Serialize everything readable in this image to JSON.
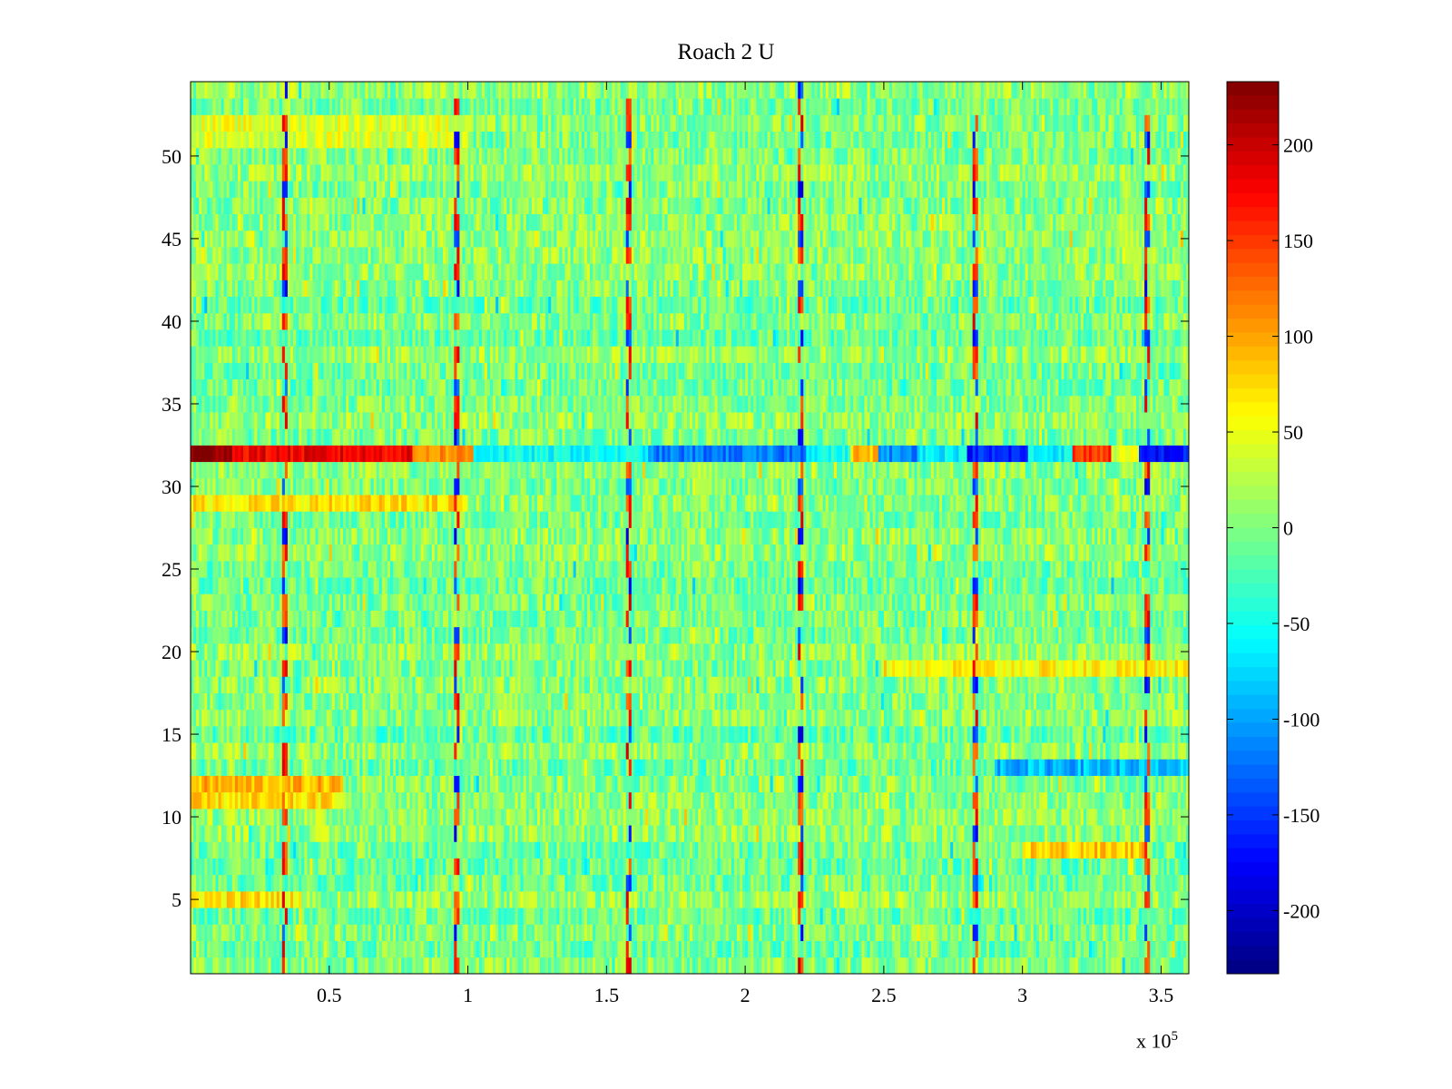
{
  "chart_data": {
    "type": "heatmap",
    "title": "Roach 2 U",
    "xlabel": "",
    "ylabel": "",
    "x_multiplier": {
      "base": "x 10",
      "exponent": "5"
    },
    "xlim": [
      0,
      360000
    ],
    "ylim": [
      0.5,
      54.5
    ],
    "x_ticks": [
      {
        "value": 50000,
        "label": "0.5"
      },
      {
        "value": 100000,
        "label": "1"
      },
      {
        "value": 150000,
        "label": "1.5"
      },
      {
        "value": 200000,
        "label": "2"
      },
      {
        "value": 250000,
        "label": "2.5"
      },
      {
        "value": 300000,
        "label": "3"
      },
      {
        "value": 350000,
        "label": "3.5"
      }
    ],
    "y_ticks": [
      {
        "value": 5,
        "label": "5"
      },
      {
        "value": 10,
        "label": "10"
      },
      {
        "value": 15,
        "label": "15"
      },
      {
        "value": 20,
        "label": "20"
      },
      {
        "value": 25,
        "label": "25"
      },
      {
        "value": 30,
        "label": "30"
      },
      {
        "value": 35,
        "label": "35"
      },
      {
        "value": 40,
        "label": "40"
      },
      {
        "value": 45,
        "label": "45"
      },
      {
        "value": 50,
        "label": "50"
      }
    ],
    "colorbar": {
      "colormap": "jet",
      "clim": [
        -233,
        233
      ],
      "ticks": [
        {
          "value": 200,
          "label": "200"
        },
        {
          "value": 150,
          "label": "150"
        },
        {
          "value": 100,
          "label": "100"
        },
        {
          "value": 50,
          "label": "50"
        },
        {
          "value": 0,
          "label": "0"
        },
        {
          "value": -50,
          "label": "-50"
        },
        {
          "value": -100,
          "label": "-100"
        },
        {
          "value": -150,
          "label": "-150"
        },
        {
          "value": -200,
          "label": "-200"
        }
      ]
    },
    "rows": 54,
    "background_range": [
      -40,
      40
    ],
    "strong_row": {
      "row": 32,
      "segments": [
        {
          "x": [
            0,
            15000
          ],
          "value": 230
        },
        {
          "x": [
            15000,
            80000
          ],
          "value": 180
        },
        {
          "x": [
            80000,
            102000
          ],
          "value": 110
        },
        {
          "x": [
            102000,
            165000
          ],
          "value": -55
        },
        {
          "x": [
            165000,
            222000
          ],
          "value": -120
        },
        {
          "x": [
            222000,
            238000
          ],
          "value": -50
        },
        {
          "x": [
            238000,
            248000
          ],
          "value": 90
        },
        {
          "x": [
            248000,
            262000
          ],
          "value": -110
        },
        {
          "x": [
            262000,
            280000
          ],
          "value": -60
        },
        {
          "x": [
            280000,
            302000
          ],
          "value": -160
        },
        {
          "x": [
            302000,
            318000
          ],
          "value": -60
        },
        {
          "x": [
            318000,
            332000
          ],
          "value": 150
        },
        {
          "x": [
            332000,
            342000
          ],
          "value": 40
        },
        {
          "x": [
            342000,
            360000
          ],
          "value": -170
        }
      ]
    },
    "row_features": [
      {
        "row": 12,
        "x": [
          0,
          55000
        ],
        "value": 90
      },
      {
        "row": 11,
        "x": [
          0,
          55000
        ],
        "value": 70
      },
      {
        "row": 29,
        "x": [
          0,
          100000
        ],
        "value": 70
      },
      {
        "row": 5,
        "x": [
          0,
          40000
        ],
        "value": 70
      },
      {
        "row": 13,
        "x": [
          290000,
          360000
        ],
        "value": -90
      },
      {
        "row": 8,
        "x": [
          300000,
          345000
        ],
        "value": 80
      },
      {
        "row": 19,
        "x": [
          250000,
          360000
        ],
        "value": 60
      },
      {
        "row": 52,
        "x": [
          0,
          100000
        ],
        "value": 45
      },
      {
        "row": 51,
        "x": [
          0,
          100000
        ],
        "value": 40
      }
    ],
    "spike_columns": [
      {
        "x": 34000,
        "value": 190
      },
      {
        "x": 96000,
        "value": 190
      },
      {
        "x": 158000,
        "value": 200
      },
      {
        "x": 220000,
        "value": 200
      },
      {
        "x": 283000,
        "value": 190
      },
      {
        "x": 345000,
        "value": 190
      }
    ]
  }
}
